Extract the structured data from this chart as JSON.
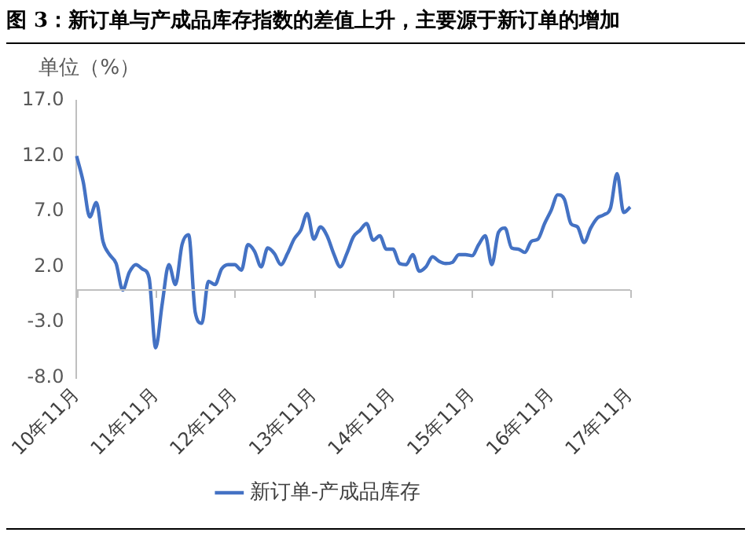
{
  "chart_data": {
    "type": "line",
    "title": "图 3：新订单与产成品库存指数的差值上升，主要源于新订单的增加",
    "ylabel": "单位（%）",
    "categories": [
      "10年11月",
      null,
      null,
      null,
      null,
      null,
      null,
      null,
      null,
      null,
      null,
      null,
      "11年11月",
      null,
      null,
      null,
      null,
      null,
      null,
      null,
      null,
      null,
      null,
      null,
      "12年11月",
      null,
      null,
      null,
      null,
      null,
      null,
      null,
      null,
      null,
      null,
      null,
      "13年11月",
      null,
      null,
      null,
      null,
      null,
      null,
      null,
      null,
      null,
      null,
      null,
      "14年11月",
      null,
      null,
      null,
      null,
      null,
      null,
      null,
      null,
      null,
      null,
      null,
      "15年11月",
      null,
      null,
      null,
      null,
      null,
      null,
      null,
      null,
      null,
      null,
      null,
      "16年11月",
      null,
      null,
      null,
      null,
      null,
      null,
      null,
      null,
      null,
      null,
      null,
      "17年11月"
    ],
    "series": [
      {
        "name": "新订单-产成品库存",
        "color": "#4472c4",
        "values": [
          12.0,
          9.7,
          6.5,
          7.8,
          4.3,
          3.1,
          2.3,
          -0.1,
          1.5,
          2.2,
          1.8,
          1.0,
          -5.3,
          -1.3,
          2.2,
          0.4,
          4.0,
          4.9,
          -2.1,
          -3.1,
          0.7,
          0.4,
          1.8,
          2.2,
          2.2,
          1.7,
          4.0,
          3.4,
          2.0,
          3.7,
          3.2,
          2.2,
          3.2,
          4.5,
          5.3,
          6.8,
          4.5,
          5.6,
          4.8,
          3.2,
          2.0,
          3.2,
          4.7,
          5.3,
          5.9,
          4.4,
          4.8,
          3.6,
          3.6,
          2.3,
          2.2,
          3.1,
          1.6,
          2.0,
          2.9,
          2.5,
          2.3,
          2.4,
          3.1,
          3.1,
          3.0,
          4.0,
          4.8,
          2.2,
          5.1,
          5.5,
          3.7,
          3.6,
          3.3,
          4.3,
          4.5,
          5.9,
          7.1,
          8.5,
          8.1,
          5.9,
          5.6,
          4.2,
          5.5,
          6.4,
          6.7,
          7.3,
          10.4,
          6.9,
          7.4
        ]
      }
    ],
    "ylim": [
      -8,
      17
    ],
    "yticks": [
      {
        "value": -8,
        "label": "-8.0"
      },
      {
        "value": -3,
        "label": "-3.0"
      },
      {
        "value": 2,
        "label": "2.0"
      },
      {
        "value": 7,
        "label": "7.0"
      },
      {
        "value": 12,
        "label": "12.0"
      },
      {
        "value": 17,
        "label": "17.0"
      }
    ],
    "grid": false,
    "legend": "bottom",
    "marker": "none",
    "line_style": "solid"
  }
}
